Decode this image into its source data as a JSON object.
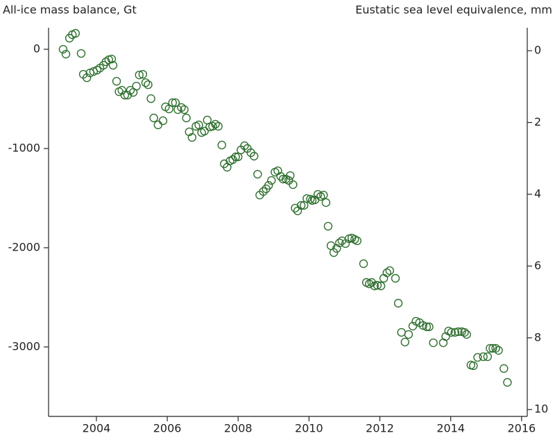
{
  "chart_data": {
    "type": "scatter",
    "ylabel": "All-ice mass balance, Gt",
    "y2label": "Eustatic sea level equivalence, mm",
    "xlim": [
      2002.65,
      2016.16
    ],
    "xticks": [
      2004,
      2006,
      2008,
      2010,
      2012,
      2014,
      2016
    ],
    "ylim": [
      -3700,
      217
    ],
    "yticks": [
      0,
      -1000,
      -2000,
      -3000
    ],
    "y2lim": [
      10.19,
      -0.64
    ],
    "y2ticks": [
      0,
      2,
      4,
      6,
      8,
      10
    ],
    "x": [
      2003.06,
      2003.14,
      2003.24,
      2003.32,
      2003.41,
      2003.57,
      2003.63,
      2003.73,
      2003.82,
      2003.92,
      2004.02,
      2004.1,
      2004.2,
      2004.27,
      2004.35,
      2004.43,
      2004.47,
      2004.57,
      2004.64,
      2004.72,
      2004.8,
      2004.88,
      2004.96,
      2005.04,
      2005.13,
      2005.21,
      2005.31,
      2005.39,
      2005.46,
      2005.54,
      2005.62,
      2005.74,
      2005.88,
      2005.95,
      2006.05,
      2006.15,
      2006.23,
      2006.3,
      2006.4,
      2006.48,
      2006.54,
      2006.62,
      2006.7,
      2006.81,
      2006.89,
      2006.97,
      2007.05,
      2007.13,
      2007.2,
      2007.28,
      2007.36,
      2007.44,
      2007.54,
      2007.61,
      2007.69,
      2007.77,
      2007.85,
      2007.93,
      2008.0,
      2008.08,
      2008.18,
      2008.26,
      2008.36,
      2008.45,
      2008.55,
      2008.61,
      2008.71,
      2008.79,
      2008.86,
      2008.94,
      2009.04,
      2009.12,
      2009.2,
      2009.27,
      2009.35,
      2009.43,
      2009.47,
      2009.55,
      2009.61,
      2009.68,
      2009.78,
      2009.86,
      2009.94,
      2010.04,
      2010.09,
      2010.17,
      2010.25,
      2010.33,
      2010.41,
      2010.48,
      2010.54,
      2010.62,
      2010.7,
      2010.78,
      2010.86,
      2010.93,
      2011.03,
      2011.13,
      2011.21,
      2011.29,
      2011.36,
      2011.54,
      2011.62,
      2011.7,
      2011.77,
      2011.85,
      2011.93,
      2012.03,
      2012.11,
      2012.2,
      2012.28,
      2012.44,
      2012.52,
      2012.61,
      2012.71,
      2012.81,
      2012.93,
      2013.02,
      2013.12,
      2013.22,
      2013.32,
      2013.39,
      2013.51,
      2013.79,
      2013.86,
      2013.94,
      2014.02,
      2014.12,
      2014.21,
      2014.31,
      2014.39,
      2014.45,
      2014.57,
      2014.64,
      2014.76,
      2014.92,
      2015.04,
      2015.11,
      2015.19,
      2015.27,
      2015.35,
      2015.5,
      2015.6
    ],
    "series": [
      {
        "color": "#2f6f2f",
        "values": [
          0,
          -49,
          112,
          147,
          161,
          -42,
          -252,
          -287,
          -238,
          -224,
          -210,
          -189,
          -161,
          -126,
          -105,
          -98,
          -161,
          -322,
          -427,
          -413,
          -462,
          -462,
          -413,
          -434,
          -371,
          -259,
          -252,
          -336,
          -357,
          -497,
          -692,
          -762,
          -720,
          -580,
          -601,
          -538,
          -538,
          -608,
          -587,
          -608,
          -692,
          -832,
          -888,
          -776,
          -762,
          -839,
          -825,
          -713,
          -783,
          -776,
          -755,
          -776,
          -965,
          -1154,
          -1189,
          -1126,
          -1112,
          -1084,
          -1084,
          -1014,
          -972,
          -1000,
          -1042,
          -1077,
          -1259,
          -1469,
          -1434,
          -1406,
          -1371,
          -1322,
          -1238,
          -1224,
          -1280,
          -1308,
          -1308,
          -1322,
          -1273,
          -1364,
          -1601,
          -1629,
          -1573,
          -1573,
          -1504,
          -1510,
          -1524,
          -1517,
          -1462,
          -1483,
          -1469,
          -1545,
          -1783,
          -1979,
          -2049,
          -2007,
          -1951,
          -1930,
          -1958,
          -1909,
          -1902,
          -1916,
          -1930,
          -2161,
          -2350,
          -2364,
          -2350,
          -2385,
          -2378,
          -2385,
          -2308,
          -2252,
          -2231,
          -2308,
          -2559,
          -2853,
          -2951,
          -2874,
          -2790,
          -2741,
          -2755,
          -2783,
          -2797,
          -2797,
          -2958,
          -2958,
          -2895,
          -2839,
          -2853,
          -2853,
          -2846,
          -2846,
          -2853,
          -2874,
          -3182,
          -3189,
          -3105,
          -3098,
          -3098,
          -3014,
          -3014,
          -3014,
          -3035,
          -3217,
          -3357
        ]
      }
    ]
  }
}
